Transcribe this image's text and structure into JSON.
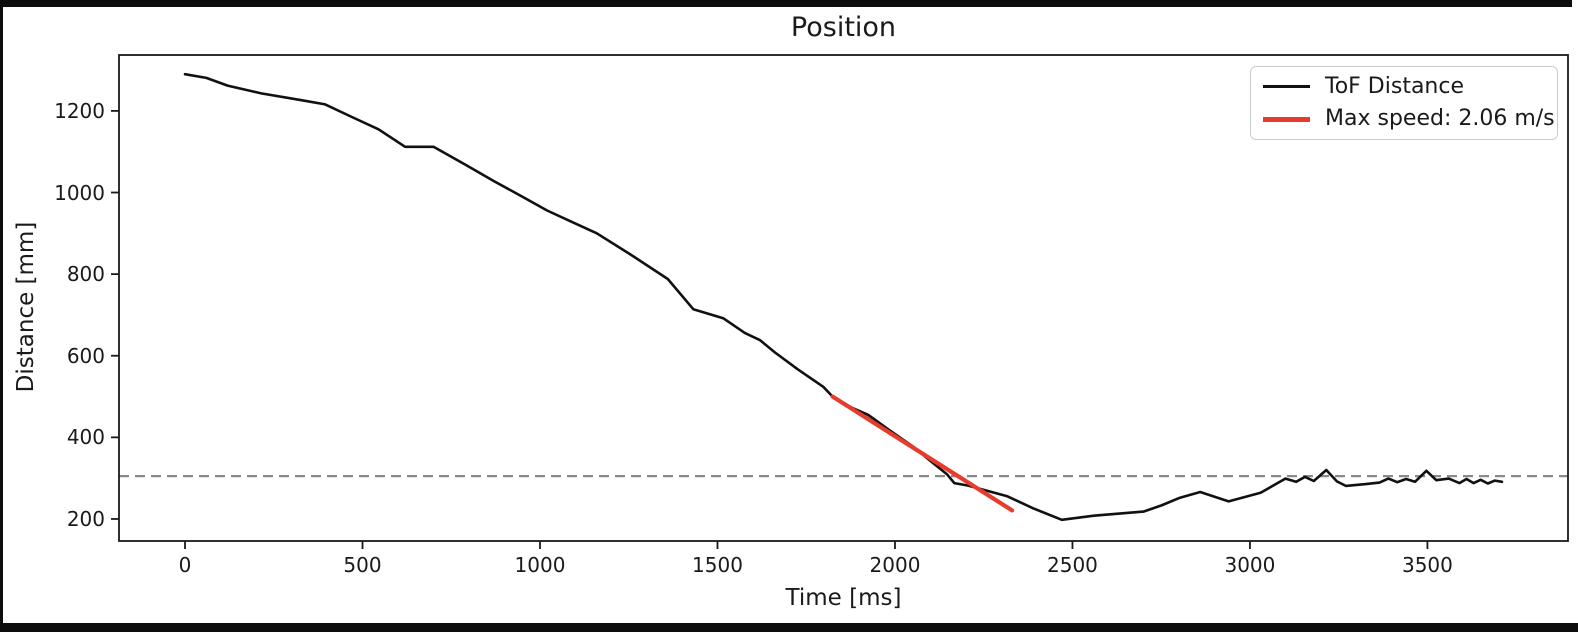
{
  "window": {
    "background_color": "#0d0d0d",
    "figure_background_color": "#ffffff",
    "text_color": "#1a1a1a"
  },
  "chart_data": {
    "type": "line",
    "title": "Position",
    "xlabel": "Time [ms]",
    "ylabel": "Distance [mm]",
    "xlim": [
      -186,
      3896
    ],
    "ylim": [
      146,
      1337
    ],
    "x_ticks": [
      0,
      500,
      1000,
      1500,
      2000,
      2500,
      3000,
      3500
    ],
    "y_ticks": [
      200,
      400,
      600,
      800,
      1000,
      1200
    ],
    "grid": false,
    "frame_color": "#1a1a1a",
    "threshold_line": {
      "value": 305,
      "style": "dashed",
      "color": "#8a8a8a",
      "linewidth": 2.2
    },
    "legend": {
      "position": "upper right",
      "entries": [
        {
          "label": "ToF Distance",
          "color": "#111111",
          "linewidth": 3
        },
        {
          "label": "Max speed: 2.06 m/s",
          "color": "#e73b2c",
          "linewidth": 4.5
        }
      ]
    },
    "series": [
      {
        "name": "ToF Distance",
        "color": "#111111",
        "linewidth": 2.6,
        "points": [
          [
            0,
            1290
          ],
          [
            60,
            1281
          ],
          [
            120,
            1262
          ],
          [
            215,
            1243
          ],
          [
            330,
            1226
          ],
          [
            395,
            1216
          ],
          [
            470,
            1185
          ],
          [
            545,
            1155
          ],
          [
            620,
            1112
          ],
          [
            700,
            1112
          ],
          [
            790,
            1068
          ],
          [
            870,
            1028
          ],
          [
            950,
            990
          ],
          [
            1020,
            956
          ],
          [
            1090,
            928
          ],
          [
            1160,
            900
          ],
          [
            1255,
            848
          ],
          [
            1360,
            788
          ],
          [
            1432,
            714
          ],
          [
            1516,
            692
          ],
          [
            1577,
            656
          ],
          [
            1620,
            638
          ],
          [
            1662,
            608
          ],
          [
            1727,
            566
          ],
          [
            1798,
            524
          ],
          [
            1824,
            500
          ],
          [
            1880,
            472
          ],
          [
            1925,
            455
          ],
          [
            1990,
            414
          ],
          [
            2050,
            378
          ],
          [
            2100,
            342
          ],
          [
            2146,
            310
          ],
          [
            2167,
            288
          ],
          [
            2205,
            282
          ],
          [
            2315,
            256
          ],
          [
            2390,
            226
          ],
          [
            2470,
            198
          ],
          [
            2560,
            208
          ],
          [
            2700,
            218
          ],
          [
            2750,
            233
          ],
          [
            2803,
            252
          ],
          [
            2860,
            266
          ],
          [
            2940,
            243
          ],
          [
            3030,
            264
          ],
          [
            3100,
            299
          ],
          [
            3130,
            291
          ],
          [
            3155,
            303
          ],
          [
            3180,
            293
          ],
          [
            3215,
            320
          ],
          [
            3245,
            292
          ],
          [
            3270,
            281
          ],
          [
            3330,
            286
          ],
          [
            3365,
            289
          ],
          [
            3390,
            299
          ],
          [
            3415,
            290
          ],
          [
            3440,
            298
          ],
          [
            3465,
            291
          ],
          [
            3497,
            318
          ],
          [
            3525,
            295
          ],
          [
            3560,
            299
          ],
          [
            3590,
            288
          ],
          [
            3610,
            298
          ],
          [
            3630,
            288
          ],
          [
            3650,
            296
          ],
          [
            3670,
            287
          ],
          [
            3690,
            294
          ],
          [
            3710,
            291
          ]
        ]
      },
      {
        "name": "Max speed: 2.06 m/s",
        "color": "#e73b2c",
        "linewidth": 4.2,
        "points": [
          [
            1824,
            500
          ],
          [
            2330,
            221
          ]
        ]
      }
    ]
  }
}
